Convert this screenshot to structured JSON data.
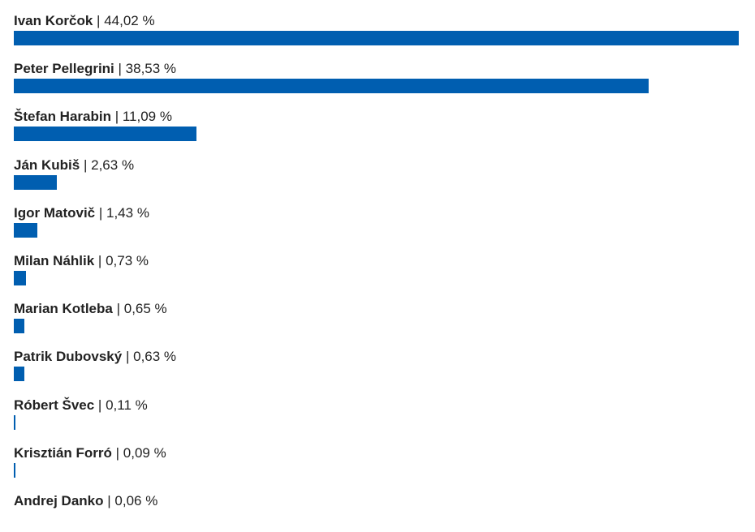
{
  "colors": {
    "bar": "#005eb0",
    "text": "#222222",
    "background": "#ffffff"
  },
  "chart_data": {
    "type": "bar",
    "orientation": "horizontal",
    "unit": "%",
    "separator": " | ",
    "suffix": " %",
    "xlim": [
      0,
      44.02
    ],
    "grid": false,
    "categories": [
      "Ivan Korčok",
      "Peter Pellegrini",
      "Štefan Harabin",
      "Ján Kubiš",
      "Igor Matovič",
      "Milan Náhlik",
      "Marian Kotleba",
      "Patrik Dubovský",
      "Róbert Švec",
      "Krisztián Forró",
      "Andrej Danko"
    ],
    "values": [
      44.02,
      38.53,
      11.09,
      2.63,
      1.43,
      0.73,
      0.65,
      0.63,
      0.11,
      0.09,
      0.06
    ],
    "value_labels": [
      "44,02",
      "38,53",
      "11,09",
      "2,63",
      "1,43",
      "0,73",
      "0,65",
      "0,63",
      "0,11",
      "0,09",
      "0,06"
    ]
  }
}
